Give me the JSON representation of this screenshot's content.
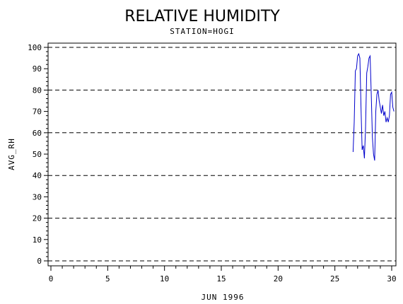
{
  "chart_data": {
    "type": "line",
    "title": "RELATIVE HUMIDITY",
    "subtitle": "STATION=HOGI",
    "xlabel": "JUN 1996",
    "ylabel": "AVG_RH",
    "xlim": [
      0,
      30
    ],
    "ylim": [
      0,
      100
    ],
    "x_ticks": [
      0,
      5,
      10,
      15,
      20,
      25,
      30
    ],
    "y_ticks": [
      0,
      10,
      20,
      30,
      40,
      50,
      60,
      70,
      80,
      90,
      100
    ],
    "gridlines_y": [
      0,
      20,
      40,
      60,
      80,
      100
    ],
    "grid_style": "dashed horizontal",
    "series": [
      {
        "color": "#0000cc",
        "x": [
          26.6,
          26.7,
          26.8,
          26.9,
          27.0,
          27.1,
          27.2,
          27.3,
          27.4,
          27.5,
          27.6,
          27.7,
          27.8,
          27.9,
          28.0,
          28.1,
          28.2,
          28.3,
          28.4,
          28.5,
          28.6,
          28.7,
          28.8,
          28.9,
          29.0,
          29.1,
          29.2,
          29.3,
          29.4,
          29.5,
          29.6,
          29.7,
          29.8,
          29.9,
          30.0,
          30.1,
          30.2
        ],
        "y": [
          51,
          65,
          89,
          90,
          96,
          97,
          95,
          72,
          52,
          54,
          48,
          62,
          88,
          91,
          95,
          96,
          78,
          58,
          50,
          47,
          70,
          78,
          80,
          75,
          72,
          69,
          73,
          68,
          70,
          65,
          67,
          65,
          68,
          78,
          79,
          72,
          70
        ]
      }
    ]
  }
}
